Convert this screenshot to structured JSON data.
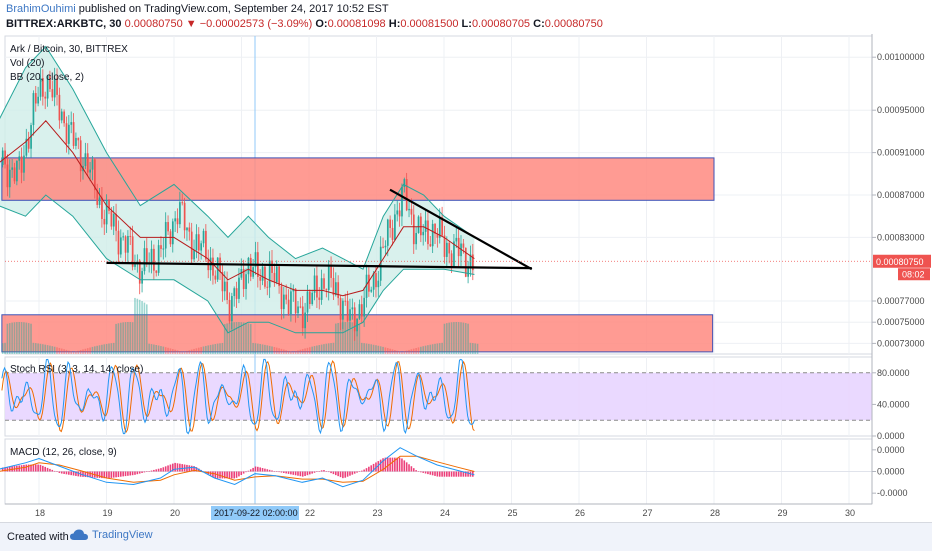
{
  "header": {
    "user": "BrahimOuhimi",
    "published_text": "published on TradingView.com, September 24, 2017 10:52 EST",
    "ticker": "BITTREX:ARKBTC, 30",
    "last": "0.00080750",
    "change": "−0.00002573 (−3.09%)",
    "o_label": "O:",
    "o_value": "0.00081098",
    "h_label": "H:",
    "h_value": "0.00081500",
    "l_label": "L:",
    "l_value": "0.00080705",
    "c_label": "C:",
    "c_value": "0.00080750"
  },
  "footer": {
    "created_with": "Created with",
    "brand": "TradingView"
  },
  "colors": {
    "up": "#26a69a",
    "down": "#ef5350",
    "zone_fill": "#ff8a80",
    "zone_border": "#3f51b5",
    "bb_fill": "#cfeee8",
    "bb_band": "#26a69a",
    "bb_basis": "#b71c1c",
    "stoch_k": "#2196f3",
    "stoch_d": "#ef6c00",
    "stoch_bg": "#e8d5ff",
    "macd_line": "#2196f3",
    "signal_line": "#ef6c00",
    "macd_hist": "#e91e63",
    "price_tag": "#ef5350"
  },
  "chart_data": [
    {
      "type": "candlestick",
      "title": "Ark / Bitcoin, 30, BITTREX",
      "indicators": [
        "Vol (20)",
        "BB (20, close, 2)"
      ],
      "x_ticks": [
        "18",
        "19",
        "20",
        "21",
        "22",
        "23",
        "24",
        "25",
        "26",
        "27",
        "28",
        "29",
        "30"
      ],
      "crosshair_label": "2017-09-22 02:00:00",
      "y_ticks": [
        "0.00100000",
        "0.00095000",
        "0.00091000",
        "0.00087000",
        "0.00083000",
        "0.00077000",
        "0.00075000",
        "0.00073000"
      ],
      "ylim": [
        0.00072,
        0.00102
      ],
      "last_price_tag": "0.00080750",
      "countdown_tag": "08:02",
      "close_path": [
        [
          17.4,
          0.0009
        ],
        [
          17.7,
          0.00089
        ],
        [
          17.9,
          0.00095
        ],
        [
          18.1,
          0.00098
        ],
        [
          18.3,
          0.00095
        ],
        [
          18.5,
          0.00092
        ],
        [
          18.7,
          0.0009
        ],
        [
          18.9,
          0.00086
        ],
        [
          19.1,
          0.00084
        ],
        [
          19.3,
          0.00082
        ],
        [
          19.5,
          0.0008
        ],
        [
          19.7,
          0.00081
        ],
        [
          19.9,
          0.00083
        ],
        [
          20.05,
          0.00086
        ],
        [
          20.2,
          0.00083
        ],
        [
          20.4,
          0.00082
        ],
        [
          20.6,
          0.0008
        ],
        [
          20.8,
          0.00077
        ],
        [
          20.95,
          0.00078
        ],
        [
          21.1,
          0.00081
        ],
        [
          21.25,
          0.00079
        ],
        [
          21.4,
          0.0008
        ],
        [
          21.55,
          0.00078
        ],
        [
          21.7,
          0.00077
        ],
        [
          21.85,
          0.00076
        ],
        [
          22.0,
          0.00077
        ],
        [
          22.2,
          0.00079
        ],
        [
          22.4,
          0.00078
        ],
        [
          22.6,
          0.00075
        ],
        [
          22.8,
          0.00077
        ],
        [
          22.95,
          0.00079
        ],
        [
          23.1,
          0.00082
        ],
        [
          23.25,
          0.00085
        ],
        [
          23.4,
          0.00087
        ],
        [
          23.55,
          0.00084
        ],
        [
          23.7,
          0.00083
        ],
        [
          23.85,
          0.00084
        ],
        [
          24.0,
          0.00082
        ],
        [
          24.15,
          0.00082
        ],
        [
          24.3,
          0.00081
        ],
        [
          24.45,
          0.000808
        ]
      ],
      "bb_upper": [
        [
          17.4,
          0.00094
        ],
        [
          17.8,
          0.00099
        ],
        [
          18.1,
          0.00101
        ],
        [
          18.5,
          0.00097
        ],
        [
          19.0,
          0.00091
        ],
        [
          19.5,
          0.00086
        ],
        [
          20.0,
          0.00088
        ],
        [
          20.5,
          0.00085
        ],
        [
          20.8,
          0.00083
        ],
        [
          21.1,
          0.00085
        ],
        [
          21.4,
          0.00083
        ],
        [
          21.8,
          0.00081
        ],
        [
          22.2,
          0.00082
        ],
        [
          22.5,
          0.00081
        ],
        [
          22.8,
          0.0008
        ],
        [
          23.1,
          0.00085
        ],
        [
          23.4,
          0.00088
        ],
        [
          23.7,
          0.00087
        ],
        [
          24.0,
          0.00085
        ],
        [
          24.45,
          0.00083
        ]
      ],
      "bb_lower": [
        [
          17.4,
          0.00086
        ],
        [
          17.8,
          0.00085
        ],
        [
          18.1,
          0.00087
        ],
        [
          18.5,
          0.00085
        ],
        [
          19.0,
          0.00081
        ],
        [
          19.5,
          0.00079
        ],
        [
          20.0,
          0.00079
        ],
        [
          20.5,
          0.00077
        ],
        [
          20.8,
          0.00074
        ],
        [
          21.1,
          0.00075
        ],
        [
          21.4,
          0.00075
        ],
        [
          21.8,
          0.00074
        ],
        [
          22.2,
          0.00074
        ],
        [
          22.5,
          0.00074
        ],
        [
          22.8,
          0.00075
        ],
        [
          23.1,
          0.00078
        ],
        [
          23.4,
          0.0008
        ],
        [
          23.7,
          0.0008
        ],
        [
          24.0,
          0.0008
        ],
        [
          24.45,
          0.000795
        ]
      ],
      "bb_basis": [
        [
          17.4,
          0.0009
        ],
        [
          17.8,
          0.00092
        ],
        [
          18.1,
          0.00094
        ],
        [
          18.5,
          0.00091
        ],
        [
          19.0,
          0.00086
        ],
        [
          19.5,
          0.00083
        ],
        [
          20.0,
          0.00083
        ],
        [
          20.5,
          0.00081
        ],
        [
          20.8,
          0.00079
        ],
        [
          21.1,
          0.0008
        ],
        [
          21.4,
          0.00079
        ],
        [
          21.8,
          0.00078
        ],
        [
          22.2,
          0.00078
        ],
        [
          22.5,
          0.000775
        ],
        [
          22.8,
          0.00078
        ],
        [
          23.1,
          0.00081
        ],
        [
          23.4,
          0.00084
        ],
        [
          23.7,
          0.00084
        ],
        [
          24.0,
          0.00083
        ],
        [
          24.45,
          0.00081
        ]
      ],
      "zones": [
        {
          "x0": 17.45,
          "x1": 28.0,
          "y0": 0.000865,
          "y1": 0.000905
        },
        {
          "x0": 17.45,
          "x1": 27.98,
          "y0": 0.000722,
          "y1": 0.000757
        }
      ],
      "trendlines": [
        {
          "x0": 19.0,
          "y0": 0.000806,
          "x1": 25.3,
          "y1": 0.000801
        },
        {
          "x0": 23.2,
          "y0": 0.000875,
          "x1": 25.3,
          "y1": 0.0008
        }
      ]
    },
    {
      "type": "line",
      "title": "Stoch RSI (3, 3, 14, 14, close)",
      "y_ticks": [
        "80.0000",
        "40.0000",
        "0.0000"
      ],
      "ylim": [
        0,
        100
      ],
      "bands": [
        20,
        80
      ]
    },
    {
      "type": "line",
      "title": "MACD (12, 26, close, 9)",
      "y_ticks": [
        "0.0000",
        "0.0000",
        "-0.0000"
      ],
      "ylim": [
        -3e-05,
        3e-05
      ],
      "macd_path": [
        [
          17.4,
          2e-06
        ],
        [
          17.8,
          8e-06
        ],
        [
          18.0,
          1.2e-05
        ],
        [
          18.3,
          5e-06
        ],
        [
          18.6,
          -2e-06
        ],
        [
          19.0,
          -1e-05
        ],
        [
          19.4,
          -1.2e-05
        ],
        [
          19.8,
          -6e-06
        ],
        [
          20.0,
          2e-06
        ],
        [
          20.3,
          4e-06
        ],
        [
          20.6,
          -6e-06
        ],
        [
          20.9,
          -1.2e-05
        ],
        [
          21.2,
          -2e-06
        ],
        [
          21.5,
          -4e-06
        ],
        [
          21.9,
          -1e-05
        ],
        [
          22.2,
          -6e-06
        ],
        [
          22.5,
          -1.4e-05
        ],
        [
          22.8,
          -8e-06
        ],
        [
          23.1,
          1e-05
        ],
        [
          23.35,
          2.2e-05
        ],
        [
          23.6,
          1.4e-05
        ],
        [
          23.9,
          6e-06
        ],
        [
          24.2,
          1e-06
        ],
        [
          24.45,
          -3e-06
        ]
      ],
      "signal_path": [
        [
          17.4,
          0.0
        ],
        [
          17.8,
          4e-06
        ],
        [
          18.0,
          8e-06
        ],
        [
          18.3,
          6e-06
        ],
        [
          18.6,
          1e-06
        ],
        [
          19.0,
          -6e-06
        ],
        [
          19.4,
          -1e-05
        ],
        [
          19.8,
          -8e-06
        ],
        [
          20.0,
          -3e-06
        ],
        [
          20.3,
          1e-06
        ],
        [
          20.6,
          -2e-06
        ],
        [
          20.9,
          -8e-06
        ],
        [
          21.2,
          -5e-06
        ],
        [
          21.5,
          -4e-06
        ],
        [
          21.9,
          -7e-06
        ],
        [
          22.2,
          -7e-06
        ],
        [
          22.5,
          -1e-05
        ],
        [
          22.8,
          -9e-06
        ],
        [
          23.1,
          2e-06
        ],
        [
          23.35,
          1.4e-05
        ],
        [
          23.6,
          1.4e-05
        ],
        [
          23.9,
          9e-06
        ],
        [
          24.2,
          4e-06
        ],
        [
          24.45,
          0.0
        ]
      ]
    }
  ]
}
